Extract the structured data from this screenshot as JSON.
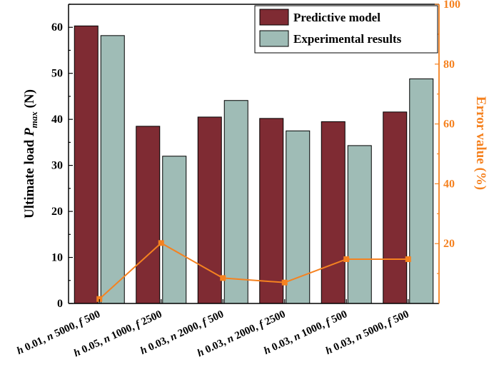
{
  "chart_data": {
    "type": "bar",
    "categories": [
      {
        "h": "0.01",
        "n": "5000",
        "f": "500"
      },
      {
        "h": "0.05",
        "n": "1000",
        "f": "2500"
      },
      {
        "h": "0.03",
        "n": "2000",
        "f": "500"
      },
      {
        "h": "0.03",
        "n": "2000",
        "f": "2500"
      },
      {
        "h": "0.03",
        "n": "1000",
        "f": "500"
      },
      {
        "h": "0.03",
        "n": "5000",
        "f": "500"
      }
    ],
    "series": [
      {
        "name": "Predictive model",
        "axis": "left",
        "kind": "bar",
        "color": "#7f2b33",
        "values": [
          60.3,
          38.5,
          40.5,
          40.2,
          39.5,
          41.6
        ]
      },
      {
        "name": "Experimental results",
        "axis": "left",
        "kind": "bar",
        "color": "#9fbcb6",
        "values": [
          58.2,
          32.0,
          44.1,
          37.5,
          34.3,
          48.8
        ]
      },
      {
        "name": "Error value",
        "axis": "right",
        "kind": "line",
        "color": "#f58220",
        "values": [
          1.5,
          20.2,
          8.5,
          7.0,
          14.8,
          14.8
        ],
        "show_in_legend": false
      }
    ],
    "ylabel": {
      "main": "Ultimate load",
      "symbol": "P",
      "subscript": "max",
      "unit": "(N)"
    },
    "y2label": "Error value (%)",
    "ylim": [
      0,
      65
    ],
    "y2lim": [
      0,
      100
    ],
    "yticks": [
      0,
      10,
      20,
      30,
      40,
      50,
      60
    ],
    "y2ticks": [
      20,
      40,
      60,
      80,
      100
    ],
    "legend_position": "top-right",
    "grid": false,
    "colors": {
      "axis_right": "#f58220",
      "axis_left": "#000000"
    }
  }
}
